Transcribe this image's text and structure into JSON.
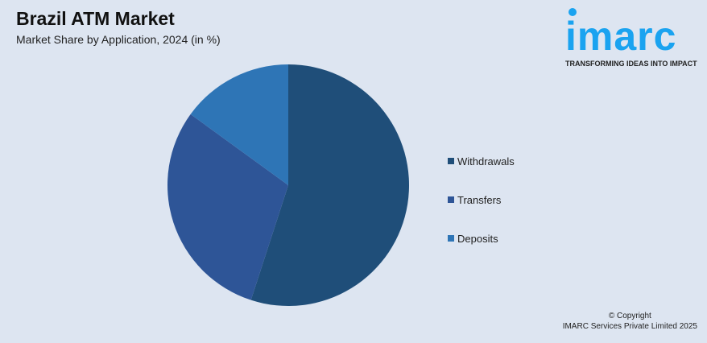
{
  "header": {
    "title": "Brazil ATM Market",
    "subtitle": "Market Share by Application, 2024 (in %)"
  },
  "logo": {
    "text": "imarc",
    "tagline": "TRANSFORMING IDEAS INTO IMPACT"
  },
  "chart_data": {
    "type": "pie",
    "title": "Brazil ATM Market",
    "subtitle": "Market Share by Application, 2024 (in %)",
    "categories": [
      "Withdrawals",
      "Transfers",
      "Deposits"
    ],
    "values": [
      55,
      30,
      15
    ],
    "colors": [
      "#1f4e79",
      "#2e5597",
      "#2e75b6"
    ],
    "legend_placement": "right"
  },
  "footer": {
    "line1": "© Copyright",
    "line2": "IMARC Services Private Limited 2025"
  }
}
